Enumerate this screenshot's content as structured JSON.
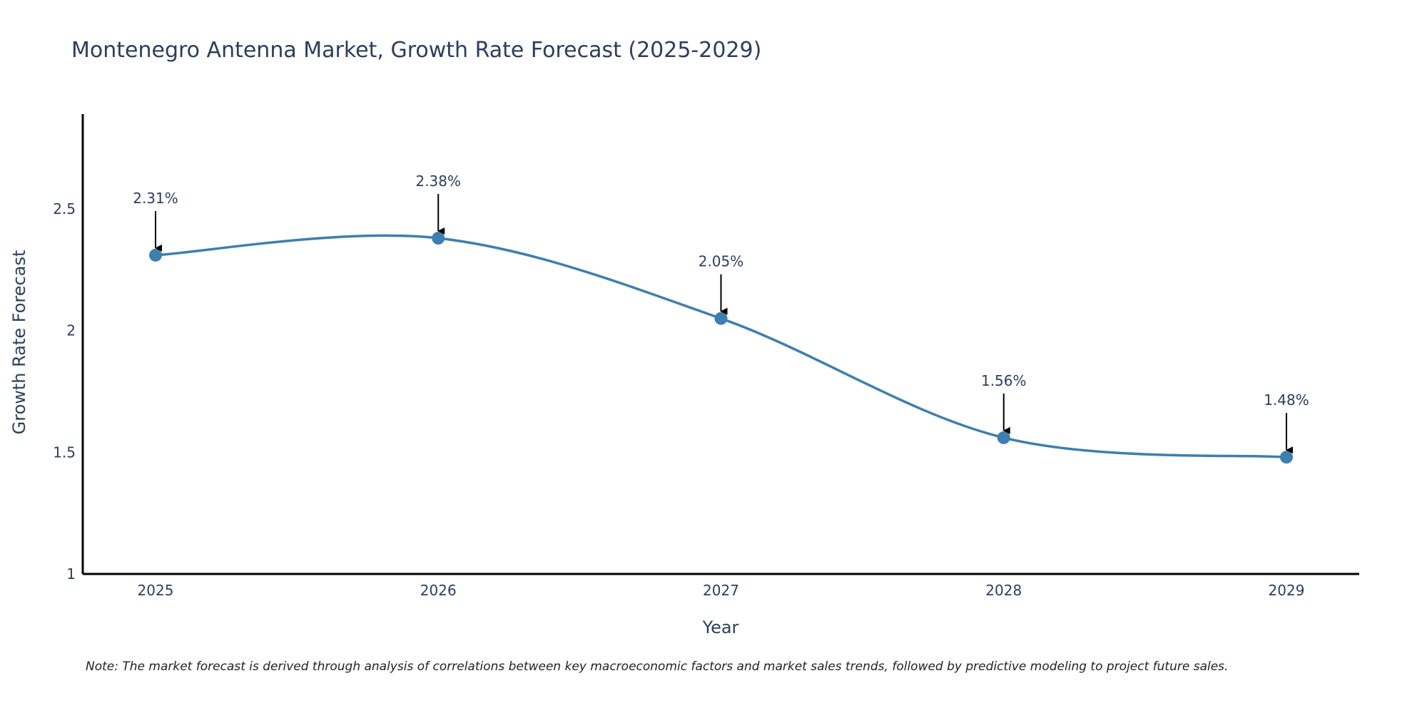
{
  "chart_data": {
    "type": "line",
    "title": "Montenegro Antenna Market, Growth Rate Forecast (2025-2029)",
    "xlabel": "Year",
    "ylabel": "Growth Rate Forecast",
    "categories": [
      "2025",
      "2026",
      "2027",
      "2028",
      "2029"
    ],
    "series": [
      {
        "name": "Growth Rate Forecast",
        "values": [
          2.31,
          2.38,
          2.05,
          1.56,
          1.48
        ],
        "labels": [
          "2.31%",
          "2.38%",
          "2.05%",
          "1.56%",
          "1.48%"
        ]
      }
    ],
    "ylim": [
      1,
      2.89
    ],
    "yticks": [
      1,
      1.5,
      2,
      2.5
    ],
    "ytick_labels": [
      "1",
      "1.5",
      "2",
      "2.5"
    ],
    "grid": false,
    "line_shape": "spline",
    "colors": {
      "line": "#3d7fb0",
      "marker": "#3d7fb0",
      "axis": "#000000",
      "text": "#2a3f5f",
      "arrow": "#000000"
    },
    "note": "Note: The market forecast is derived through analysis of correlations between key macroeconomic factors and market sales trends, followed by predictive modeling to project future sales."
  }
}
